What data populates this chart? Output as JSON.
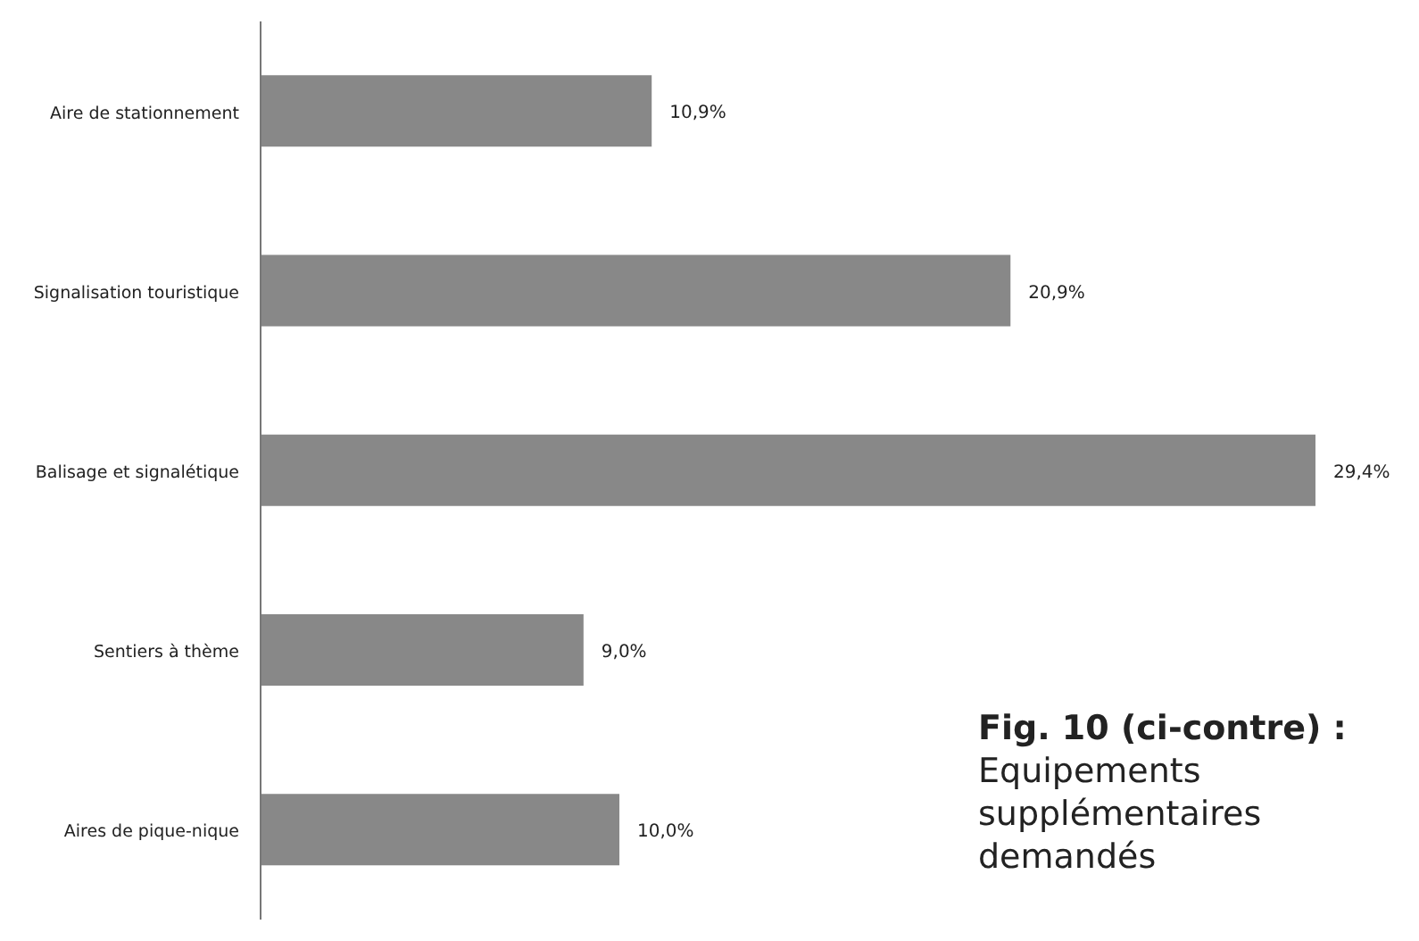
{
  "chart_data": {
    "type": "bar",
    "orientation": "horizontal",
    "categories": [
      "Aire de stationnement",
      "Signalisation touristique",
      "Balisage et signalétique",
      "Sentiers à thème",
      "Aires de pique-nique"
    ],
    "values": [
      10.9,
      20.9,
      29.4,
      9.0,
      10.0
    ],
    "value_labels": [
      "10,9%",
      "20,9%",
      "29,4%",
      "9,0%",
      "10,0%"
    ],
    "color": "#888888",
    "grid": false,
    "legend": false,
    "annotations": [
      "Fig. 10 (ci-contre) :",
      "Equipements supplémentaires demandés"
    ]
  }
}
